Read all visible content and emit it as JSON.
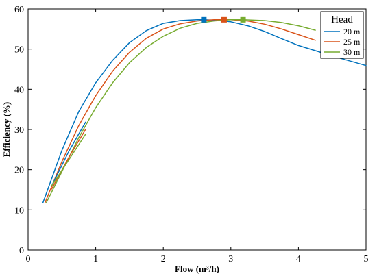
{
  "chart_data": {
    "type": "line",
    "xlabel": "Flow (m³/h)",
    "ylabel": "Efficiency (%)",
    "xlim": [
      0,
      5
    ],
    "ylim": [
      0,
      60
    ],
    "xticks": [
      0,
      1,
      2,
      3,
      4,
      5
    ],
    "yticks": [
      0,
      10,
      20,
      30,
      40,
      50,
      60
    ],
    "grid": false,
    "legend": {
      "title": "Head",
      "placement": "top-right"
    },
    "series": [
      {
        "name": "20 m",
        "color": "#0072BD",
        "x": [
          0.22,
          0.5,
          0.75,
          1.0,
          1.25,
          1.5,
          1.75,
          2.0,
          2.25,
          2.5,
          2.6,
          2.75,
          3.0,
          3.25,
          3.5,
          3.75,
          4.0,
          4.25,
          4.5,
          4.75,
          5.0
        ],
        "y": [
          11.8,
          24.8,
          34.5,
          41.6,
          47.2,
          51.6,
          54.6,
          56.4,
          57.1,
          57.3,
          57.3,
          57.2,
          56.8,
          55.8,
          54.4,
          52.6,
          50.9,
          49.6,
          48.3,
          47.1,
          45.9
        ],
        "peak": {
          "x": 2.6,
          "y": 57.3
        }
      },
      {
        "name": "25 m",
        "color": "#D95319",
        "x": [
          0.25,
          0.5,
          0.75,
          1.0,
          1.25,
          1.5,
          1.75,
          2.0,
          2.25,
          2.5,
          2.75,
          2.9,
          3.0,
          3.25,
          3.5,
          3.75,
          4.0,
          4.25
        ],
        "y": [
          11.8,
          22.0,
          31.0,
          38.4,
          44.5,
          49.2,
          52.7,
          55.0,
          56.3,
          57.0,
          57.3,
          57.3,
          57.3,
          57.0,
          56.2,
          55.0,
          53.6,
          52.2
        ],
        "peak": {
          "x": 2.9,
          "y": 57.3
        }
      },
      {
        "name": "30 m",
        "color": "#77AC30",
        "x": [
          0.27,
          0.5,
          0.75,
          1.0,
          1.25,
          1.5,
          1.75,
          2.0,
          2.25,
          2.5,
          2.75,
          3.0,
          3.18,
          3.5,
          3.75,
          4.0,
          4.25
        ],
        "y": [
          11.8,
          19.5,
          28.0,
          35.4,
          41.6,
          46.6,
          50.4,
          53.2,
          55.2,
          56.4,
          57.0,
          57.3,
          57.3,
          57.1,
          56.6,
          55.8,
          54.7
        ],
        "peak": {
          "x": 3.18,
          "y": 57.3
        }
      },
      {
        "name": "",
        "color": "#0072BD",
        "x": [
          0.35,
          0.6,
          0.85
        ],
        "y": [
          16.0,
          24.5,
          31.8
        ],
        "peak": null
      },
      {
        "name": "",
        "color": "#D95319",
        "x": [
          0.35,
          0.6,
          0.85
        ],
        "y": [
          15.2,
          23.0,
          30.0
        ],
        "peak": null
      },
      {
        "name": "",
        "color": "#77AC30",
        "x": [
          0.35,
          0.6,
          0.85
        ],
        "y": [
          16.0,
          22.4,
          28.8
        ],
        "peak": null
      }
    ]
  }
}
